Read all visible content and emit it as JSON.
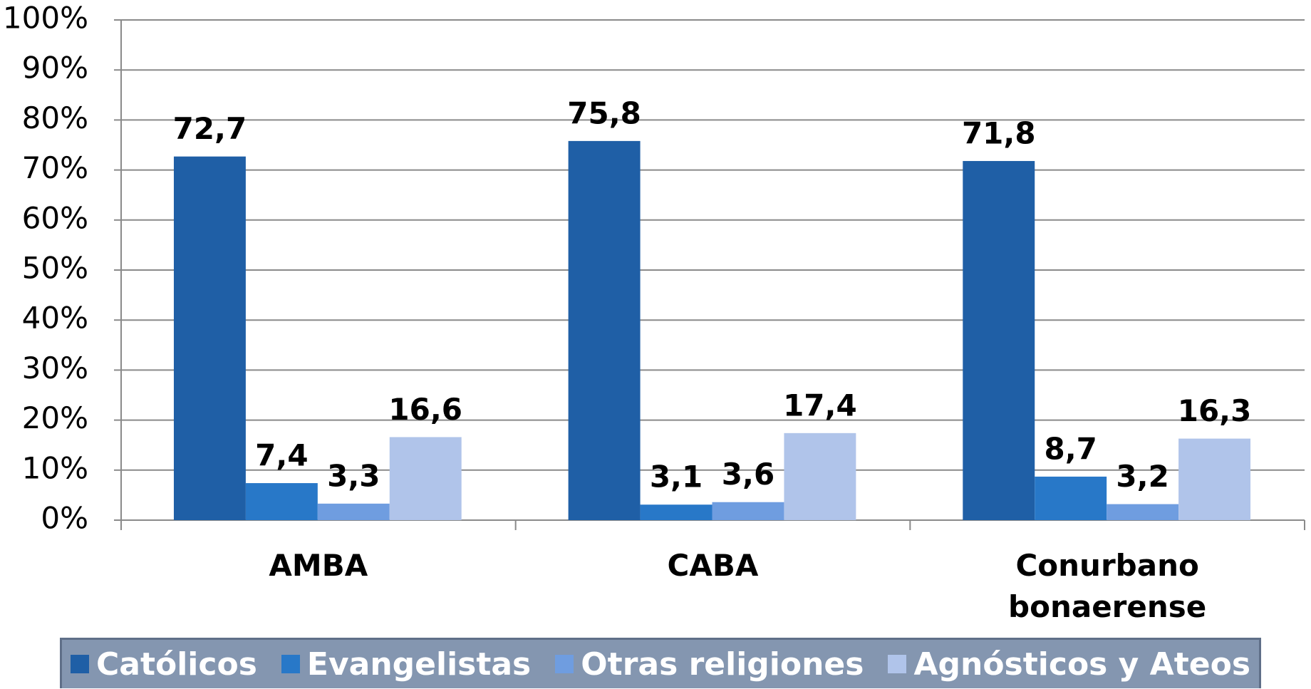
{
  "chart_data": {
    "type": "bar",
    "categories": [
      "AMBA",
      "CABA",
      "Conurbano bonaerense"
    ],
    "series": [
      {
        "name": "Católicos",
        "color": "#1f5fa6",
        "values": [
          72.7,
          75.8,
          71.8
        ],
        "value_labels": [
          "72,7",
          "75,8",
          "71,8"
        ]
      },
      {
        "name": "Evangelistas",
        "color": "#2878c8",
        "values": [
          7.4,
          3.1,
          8.7
        ],
        "value_labels": [
          "7,4",
          "3,1",
          "8,7"
        ]
      },
      {
        "name": "Otras religiones",
        "color": "#6f9de0",
        "values": [
          3.3,
          3.6,
          3.2
        ],
        "value_labels": [
          "3,3",
          "3,6",
          "3,2"
        ]
      },
      {
        "name": "Agnósticos y Ateos",
        "color": "#b0c4ea",
        "values": [
          16.6,
          17.4,
          16.3
        ],
        "value_labels": [
          "16,6",
          "17,4",
          "16,3"
        ]
      }
    ],
    "ylim": [
      0,
      100
    ],
    "yticks": [
      {
        "value": 0,
        "label": "0%"
      },
      {
        "value": 10,
        "label": "10%"
      },
      {
        "value": 20,
        "label": "20%"
      },
      {
        "value": 30,
        "label": "30%"
      },
      {
        "value": 40,
        "label": "40%"
      },
      {
        "value": 50,
        "label": "50%"
      },
      {
        "value": 60,
        "label": "60%"
      },
      {
        "value": 70,
        "label": "70%"
      },
      {
        "value": 80,
        "label": "80%"
      },
      {
        "value": 90,
        "label": "90%"
      },
      {
        "value": 100,
        "label": "100%"
      }
    ],
    "grid": true,
    "legend": "bottom"
  }
}
